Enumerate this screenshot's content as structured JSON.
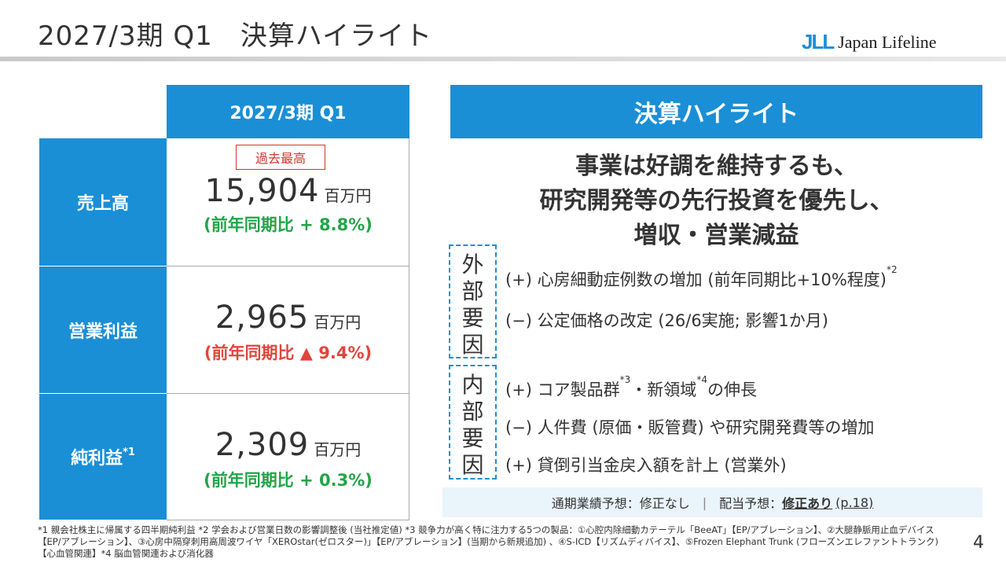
{
  "header": {
    "title": "2027/3期 Q1　決算ハイライト",
    "logo_mark": "JLL",
    "logo_text": "Japan Lifeline"
  },
  "table": {
    "column_header": "2027/3期 Q1",
    "rows": [
      {
        "label": "売上高",
        "label_note": "",
        "badge": "過去最高",
        "value": "15,904",
        "unit": "百万円",
        "yoy": "(前年同期比 + 8.8%)",
        "trend": "up"
      },
      {
        "label": "営業利益",
        "label_note": "",
        "badge": "",
        "value": "2,965",
        "unit": "百万円",
        "yoy": "(前年同期比 ▲ 9.4%)",
        "trend": "down"
      },
      {
        "label": "純利益",
        "label_note": "*1",
        "badge": "",
        "value": "2,309",
        "unit": "百万円",
        "yoy": "(前年同期比 + 0.3%)",
        "trend": "up"
      }
    ]
  },
  "highlight": {
    "header": "決算ハイライト",
    "headline": [
      "事業は好調を維持するも、",
      "研究開発等の先行投資を優先し、",
      "増収・営業減益"
    ],
    "external": {
      "label_chars": [
        "外",
        "部",
        "要",
        "因"
      ],
      "items": [
        {
          "text": "(+) 心房細動症例数の増加 (前年同期比+10%程度)",
          "note": "*2",
          "tail": ""
        },
        {
          "text": "(−) 公定価格の改定 (26/6実施; 影響1か月)",
          "note": "",
          "tail": ""
        }
      ]
    },
    "internal": {
      "label_chars": [
        "内",
        "部",
        "要",
        "因"
      ],
      "items": [
        {
          "text": "(+) コア製品群",
          "note": "*3",
          "mid": "・新領域",
          "note2": "*4",
          "tail": "の伸長"
        },
        {
          "text": "(−) 人件費 (原価・販管費) や研究開発費等の増加",
          "note": "",
          "mid": "",
          "note2": "",
          "tail": ""
        },
        {
          "text": "(+) 貸倒引当金戻入額を計上 (営業外)",
          "note": "",
          "mid": "",
          "note2": "",
          "tail": ""
        }
      ]
    }
  },
  "forecast": {
    "earnings_label": "通期業績予想：修正なし",
    "separator": "|",
    "dividend_label": "配当予想：",
    "dividend_value": "修正あり",
    "page_ref": "(p.18)"
  },
  "footnote": "*1 親会社株主に帰属する四半期純利益 *2 学会および営業日数の影響調整後 (当社推定値) *3 競争力が高く特に注力する5つの製品：①心腔内除細動カテーテル「BeeAT」【EP/アブレーション】、②大腿静脈用止血デバイス【EP/アブレーション】、③心房中隔穿刺用高周波ワイヤ「XEROstar(ゼロスター)」【EP/アブレーション】(当期から新規追加) 、④S-ICD【リズムディバイス】、⑤Frozen Elephant Trunk (フローズンエレファントトランク) 【心血管関連】*4 脳血管関連および消化器",
  "page_number": "4",
  "colors": {
    "accent": "#1a8fd6",
    "positive": "#22a447",
    "negative": "#e0453c",
    "badge": "#d4342b"
  }
}
